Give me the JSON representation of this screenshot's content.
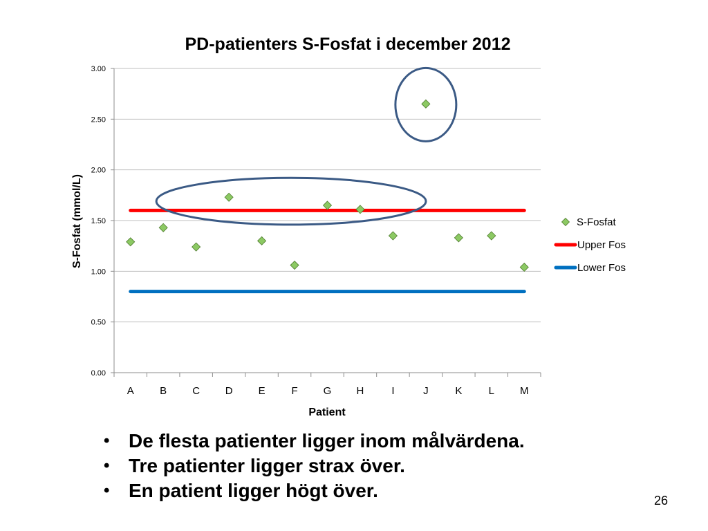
{
  "chart_data": {
    "type": "scatter",
    "title": "PD-patienters S-Fosfat i december 2012",
    "xlabel": "Patient",
    "ylabel": "S-Fosfat (mmol/L)",
    "ylim": [
      0,
      3
    ],
    "yticks": [
      "0.00",
      "0.50",
      "1.00",
      "1.50",
      "2.00",
      "2.50",
      "3.00"
    ],
    "categories": [
      "A",
      "B",
      "C",
      "D",
      "E",
      "F",
      "G",
      "H",
      "I",
      "J",
      "K",
      "L",
      "M"
    ],
    "grid": true,
    "legend_position": "right",
    "series": [
      {
        "name": "S-Fosfat",
        "kind": "marker-diamond",
        "color": "#8cc963",
        "values": [
          1.29,
          1.43,
          1.24,
          1.73,
          1.3,
          1.06,
          1.65,
          1.61,
          1.35,
          2.65,
          1.33,
          1.35,
          1.04
        ]
      },
      {
        "name": "Upper Fos",
        "kind": "line",
        "color": "#ff0000",
        "values": [
          1.6,
          1.6,
          1.6,
          1.6,
          1.6,
          1.6,
          1.6,
          1.6,
          1.6,
          1.6,
          1.6,
          1.6,
          1.6
        ]
      },
      {
        "name": "Lower Fos",
        "kind": "line",
        "color": "#0070c0",
        "values": [
          0.8,
          0.8,
          0.8,
          0.8,
          0.8,
          0.8,
          0.8,
          0.8,
          0.8,
          0.8,
          0.8,
          0.8,
          0.8
        ]
      }
    ],
    "annotations": [
      {
        "shape": "ellipse",
        "color": "#3b5a85",
        "around": [
          "D",
          "G",
          "H"
        ]
      },
      {
        "shape": "ellipse",
        "color": "#3b5a85",
        "around": [
          "J"
        ]
      }
    ]
  },
  "bullets": [
    "De flesta patienter ligger inom målvärdena.",
    "Tre patienter ligger strax över.",
    "En patient ligger högt över."
  ],
  "bullet_symbol": "•",
  "page_number": "26"
}
